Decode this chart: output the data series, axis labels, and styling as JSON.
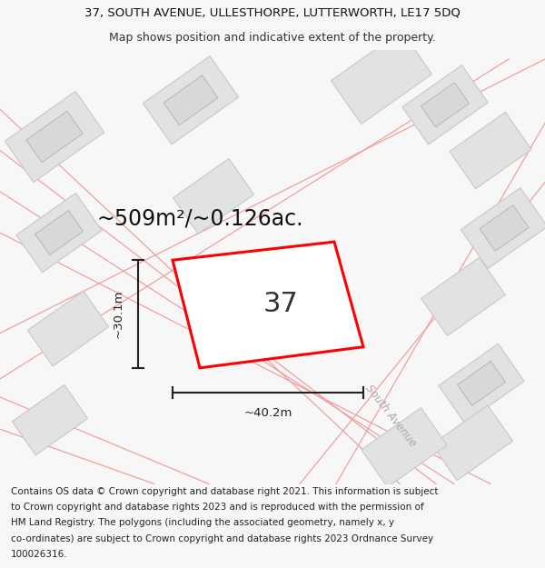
{
  "title_line1": "37, SOUTH AVENUE, ULLESTHORPE, LUTTERWORTH, LE17 5DQ",
  "title_line2": "Map shows position and indicative extent of the property.",
  "area_label": "~509m²/~0.126ac.",
  "property_number": "37",
  "dim_width": "~40.2m",
  "dim_height": "~30.1m",
  "street_label": "South Avenue",
  "footer_lines": [
    "Contains OS data © Crown copyright and database right 2021. This information is subject",
    "to Crown copyright and database rights 2023 and is reproduced with the permission of",
    "HM Land Registry. The polygons (including the associated geometry, namely x, y",
    "co-ordinates) are subject to Crown copyright and database rights 2023 Ordnance Survey",
    "100026316."
  ],
  "bg_color": "#f7f7f7",
  "map_bg": "#ffffff",
  "building_fill": "#e2e2e2",
  "building_edge": "#c8c8c8",
  "road_color": "#f0a0a0",
  "property_color": "#ff0000",
  "dim_color": "#222222",
  "title_fontsize": 9.5,
  "subtitle_fontsize": 9.0,
  "area_fontsize": 17,
  "number_fontsize": 22,
  "dim_fontsize": 9.5,
  "footer_fontsize": 7.5,
  "street_fontsize": 8.5
}
